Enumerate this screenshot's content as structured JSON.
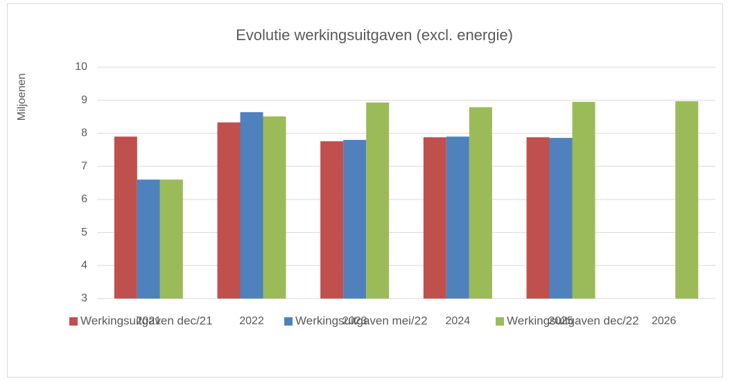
{
  "chart_data": {
    "type": "bar",
    "title": "Evolutie werkingsuitgaven (excl. energie)",
    "y_label": "Miljoenen",
    "categories": [
      "2021",
      "2022",
      "2023",
      "2024",
      "2025",
      "2026"
    ],
    "series": [
      {
        "name": "Werkingsuitgaven dec/21",
        "color": "#c0504d",
        "values": [
          7.9,
          8.33,
          7.76,
          7.88,
          7.88,
          null
        ]
      },
      {
        "name": "Werkingsuitgaven mei/22",
        "color": "#4f81bd",
        "values": [
          6.6,
          8.64,
          7.8,
          7.9,
          7.86,
          null
        ]
      },
      {
        "name": "Werkingsuitgaven dec/22",
        "color": "#9bbb59",
        "values": [
          6.6,
          8.51,
          8.93,
          8.79,
          8.95,
          8.97
        ]
      }
    ],
    "ylim": [
      3,
      10
    ],
    "yticks": [
      3,
      4,
      5,
      6,
      7,
      8,
      9,
      10
    ],
    "grid": true,
    "legend": "bottom"
  }
}
